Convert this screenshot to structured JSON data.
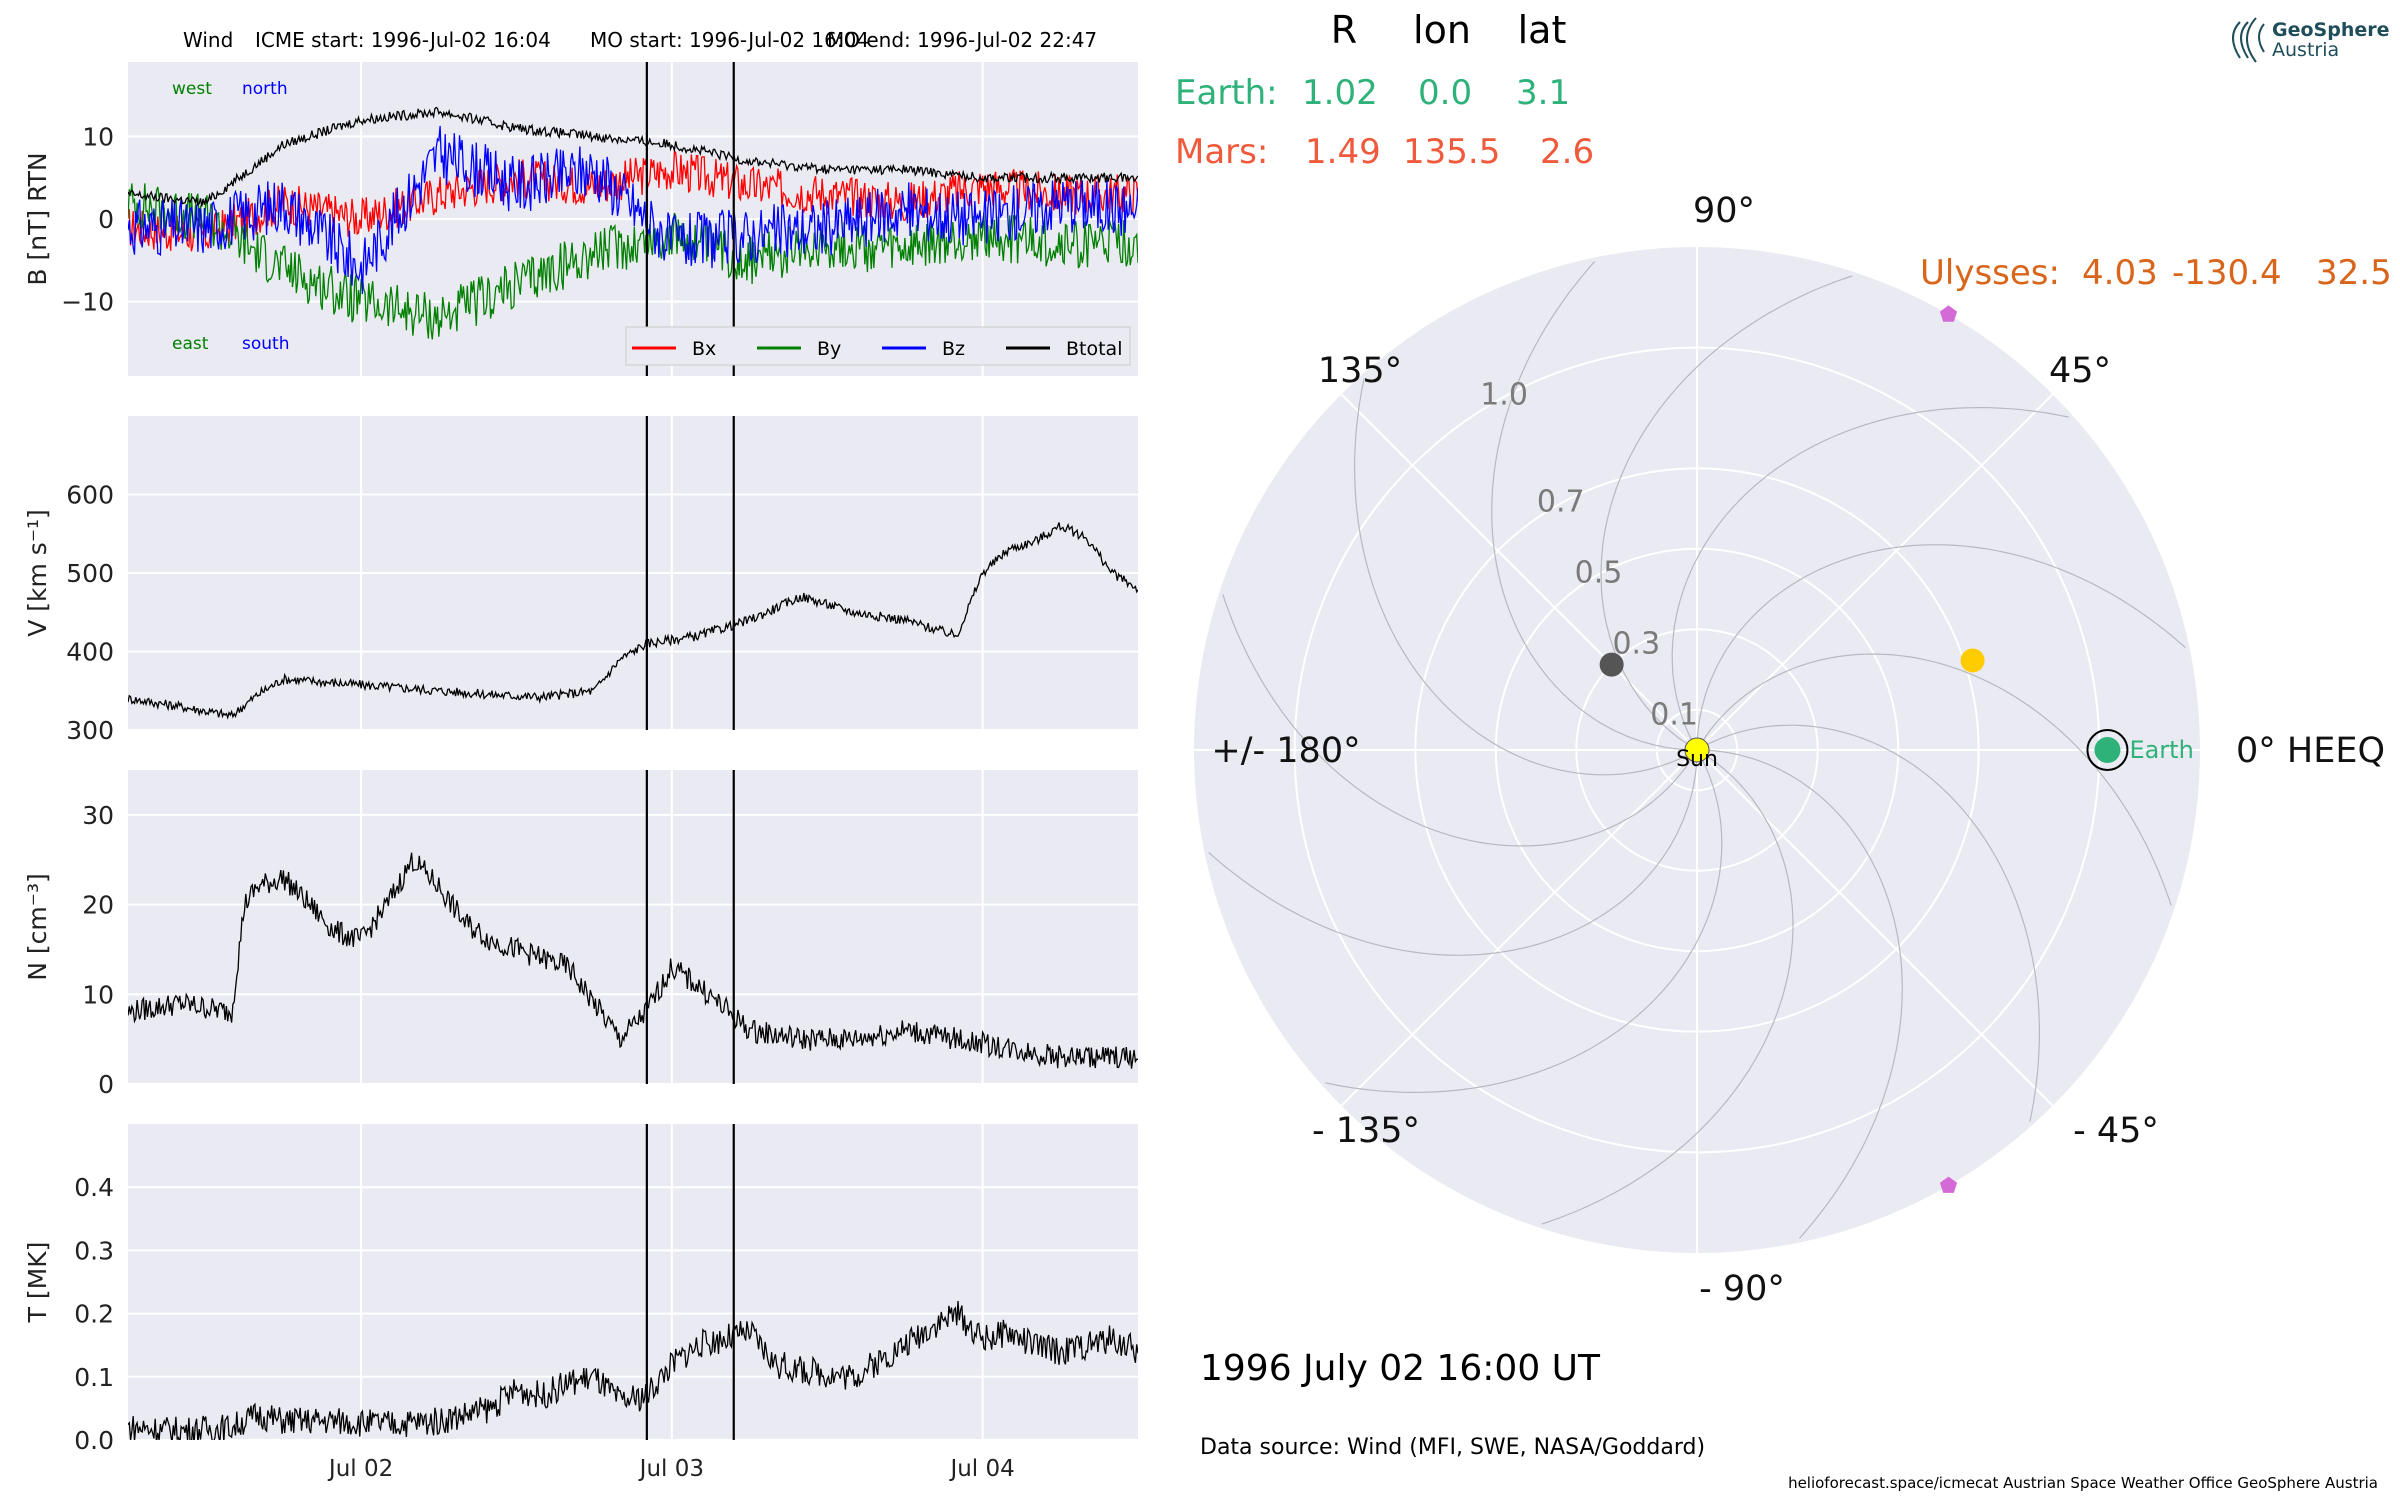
{
  "header": {
    "spacecraft": "Wind",
    "icme_start": "ICME start: 1996-Jul-02 16:04",
    "mo_start": "MO start: 1996-Jul-02 16:04",
    "mo_end": "MO end: 1996-Jul-02 22:47"
  },
  "colors": {
    "bx": "#ff0000",
    "by": "#008000",
    "bz": "#0000ff",
    "btotal": "#000000",
    "panel_bg": "#eaeaf2",
    "grid": "#ffffff",
    "earth": "#2fb27a",
    "mars": "#f05a3c",
    "ulysses": "#d9651b",
    "sun": "#ffff00",
    "mercury": "#555555",
    "venus": "#ffcc00",
    "marker": "#d36ad6"
  },
  "chart_data": [
    {
      "type": "line",
      "ylabel": "B [nT] RTN",
      "ylim": [
        -19,
        19
      ],
      "yticks": [
        "−10",
        "0",
        "10"
      ],
      "legend": [
        "Bx",
        "By",
        "Bz",
        "Btotal"
      ],
      "legend_position": "lower-right",
      "corner_labels": {
        "west": "west",
        "north": "north",
        "east": "east",
        "south": "south"
      },
      "series": [
        {
          "name": "Bx",
          "x_hours": [
            0,
            6,
            12,
            18,
            24,
            30,
            36,
            42,
            48,
            54,
            60,
            66,
            72,
            78
          ],
          "values": [
            -1,
            -2,
            2,
            0,
            3,
            5,
            4,
            6,
            4,
            3,
            2,
            4,
            3,
            3
          ]
        },
        {
          "name": "By",
          "x_hours": [
            0,
            6,
            12,
            18,
            24,
            30,
            36,
            42,
            48,
            54,
            60,
            66,
            72,
            78
          ],
          "values": [
            2,
            0,
            -6,
            -10,
            -12,
            -8,
            -4,
            -2,
            -5,
            -3,
            -4,
            -2,
            -3,
            -3
          ]
        },
        {
          "name": "Bz",
          "x_hours": [
            0,
            6,
            12,
            18,
            24,
            30,
            36,
            42,
            48,
            54,
            60,
            66,
            72,
            78
          ],
          "values": [
            -1,
            -1,
            2,
            -6,
            8,
            4,
            6,
            -3,
            -2,
            -1,
            1,
            0,
            2,
            1
          ]
        },
        {
          "name": "Btotal",
          "x_hours": [
            0,
            6,
            12,
            18,
            24,
            30,
            36,
            42,
            48,
            54,
            60,
            66,
            72,
            78
          ],
          "values": [
            3,
            2,
            9,
            12,
            13,
            11,
            10,
            9,
            7,
            6,
            6,
            5,
            5,
            5
          ]
        }
      ]
    },
    {
      "type": "line",
      "ylabel": "V [km s⁻¹]",
      "ylim": [
        300,
        700
      ],
      "yticks": [
        "300",
        "400",
        "500",
        "600"
      ],
      "series": [
        {
          "name": "V",
          "x_hours": [
            0,
            4,
            8,
            10,
            12,
            16,
            20,
            24,
            28,
            32,
            36,
            38,
            40,
            44,
            48,
            50,
            52,
            56,
            60,
            62,
            64,
            66,
            68,
            70,
            72,
            74,
            76,
            78
          ],
          "values": [
            340,
            330,
            318,
            345,
            365,
            360,
            355,
            350,
            345,
            342,
            350,
            390,
            410,
            420,
            440,
            455,
            470,
            450,
            440,
            430,
            420,
            500,
            530,
            540,
            560,
            545,
            500,
            480
          ]
        }
      ]
    },
    {
      "type": "line",
      "ylabel": "N [cm⁻³]",
      "ylim": [
        0,
        35
      ],
      "yticks": [
        "0",
        "10",
        "20",
        "30"
      ],
      "series": [
        {
          "name": "N",
          "x_hours": [
            0,
            4,
            8,
            9,
            10,
            12,
            14,
            16,
            18,
            20,
            22,
            24,
            26,
            28,
            30,
            32,
            34,
            36,
            38,
            40,
            42,
            44,
            48,
            52,
            56,
            60,
            64,
            68,
            72,
            76,
            78
          ],
          "values": [
            8,
            9,
            8,
            20,
            22,
            23,
            20,
            17,
            16,
            20,
            25,
            22,
            18,
            16,
            15,
            14,
            13,
            9,
            5,
            8,
            13,
            11,
            6,
            5,
            5,
            6,
            5,
            4,
            3,
            3,
            3
          ]
        }
      ]
    },
    {
      "type": "line",
      "ylabel": "T [MK]",
      "ylim": [
        0,
        0.5
      ],
      "yticks": [
        "0.0",
        "0.1",
        "0.2",
        "0.3",
        "0.4"
      ],
      "xticks": [
        "Jul 02",
        "Jul 03",
        "Jul 04"
      ],
      "series": [
        {
          "name": "T",
          "x_hours": [
            0,
            4,
            8,
            10,
            12,
            16,
            20,
            24,
            28,
            30,
            32,
            34,
            36,
            38,
            40,
            42,
            44,
            46,
            48,
            50,
            52,
            56,
            60,
            62,
            64,
            66,
            68,
            70,
            72,
            76,
            78
          ],
          "values": [
            0.02,
            0.015,
            0.02,
            0.04,
            0.03,
            0.03,
            0.025,
            0.03,
            0.05,
            0.08,
            0.07,
            0.09,
            0.1,
            0.06,
            0.07,
            0.12,
            0.15,
            0.16,
            0.17,
            0.12,
            0.11,
            0.1,
            0.15,
            0.18,
            0.2,
            0.16,
            0.17,
            0.15,
            0.14,
            0.16,
            0.14
          ]
        }
      ]
    },
    {
      "type": "scatter",
      "projection": "polar",
      "angle_labels": [
        "0° HEEQ",
        "45°",
        "90°",
        "135°",
        "+/- 180°",
        "- 135°",
        "- 90°",
        "- 45°"
      ],
      "radial_labels": [
        "0.1",
        "0.3",
        "0.5",
        "0.7",
        "1.0"
      ],
      "points": [
        {
          "label": "Sun",
          "r": 0.0,
          "lon_deg": 0
        },
        {
          "label": "Earth",
          "r": 1.02,
          "lon_deg": 0.0
        },
        {
          "label": "",
          "r": 0.72,
          "lon_deg": 18
        },
        {
          "label": "",
          "r": 0.3,
          "lon_deg": 135
        },
        {
          "label": "",
          "r": 1.25,
          "lon_deg": 60
        },
        {
          "label": "",
          "r": 1.25,
          "lon_deg": -60
        }
      ]
    }
  ],
  "table": {
    "headers": [
      "R",
      "lon",
      "lat"
    ],
    "rows": [
      {
        "name": "Earth:",
        "r": "1.02",
        "lon": "0.0",
        "lat": "3.1"
      },
      {
        "name": "Mars:",
        "r": "1.49",
        "lon": "135.5",
        "lat": "2.6"
      }
    ],
    "ulysses": {
      "name": "Ulysses:",
      "r": "4.03",
      "lon": "-130.4",
      "lat": "32.5"
    }
  },
  "date_text": "1996 July 02  16:00 UT",
  "data_source": "Data source: Wind (MFI, SWE, NASA/Goddard)",
  "footer": "helioforecast.space/icmecat   Austrian Space Weather Office   GeoSphere Austria",
  "logo": {
    "line1": "GeoSphere",
    "line2": "Austria"
  }
}
